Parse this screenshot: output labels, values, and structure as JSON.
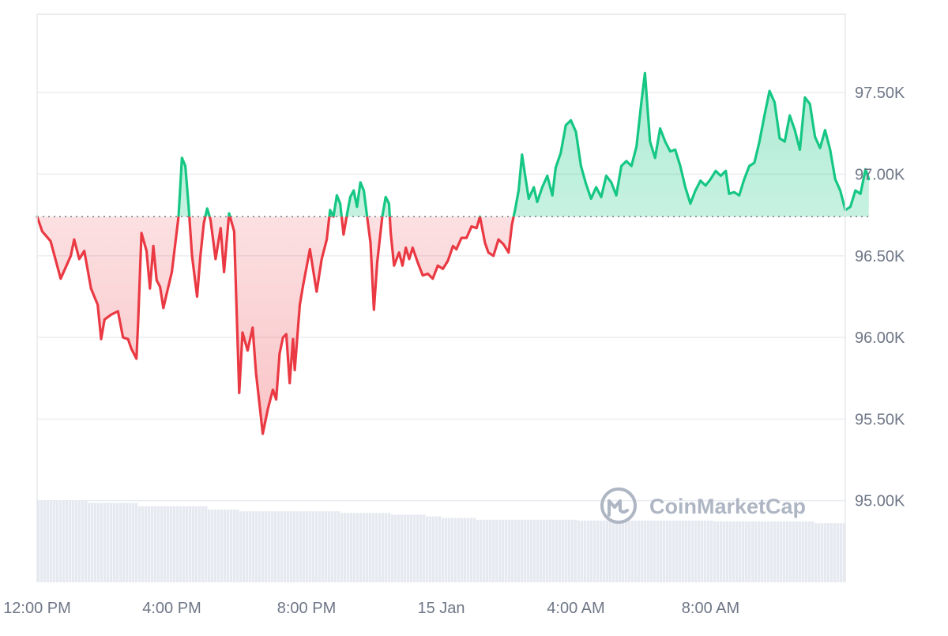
{
  "chart_data": {
    "type": "area",
    "baseline": 96740,
    "ylim": [
      94500,
      97980
    ],
    "y_ticks": [
      {
        "value": 95000,
        "label": "95.00K"
      },
      {
        "value": 95500,
        "label": "95.50K"
      },
      {
        "value": 96000,
        "label": "96.00K"
      },
      {
        "value": 96500,
        "label": "96.50K"
      },
      {
        "value": 97000,
        "label": "97.00K"
      },
      {
        "value": 97500,
        "label": "97.50K"
      }
    ],
    "x_ticks": [
      {
        "hours": 0,
        "label": "12:00 PM"
      },
      {
        "hours": 4,
        "label": "4:00 PM"
      },
      {
        "hours": 8,
        "label": "8:00 PM"
      },
      {
        "hours": 12,
        "label": "15 Jan"
      },
      {
        "hours": 16,
        "label": "4:00 AM"
      },
      {
        "hours": 20,
        "label": "8:00 AM"
      }
    ],
    "xlim_hours": [
      0,
      24
    ],
    "colors": {
      "up": "#16c784",
      "down": "#ea3943",
      "grid": "#e9ecf0",
      "volume": "#e6eaf0"
    },
    "watermark": "CoinMarketCap",
    "price_series": [
      [
        0.0,
        96740
      ],
      [
        0.15,
        96650
      ],
      [
        0.4,
        96590
      ],
      [
        0.7,
        96360
      ],
      [
        1.0,
        96500
      ],
      [
        1.1,
        96600
      ],
      [
        1.25,
        96480
      ],
      [
        1.4,
        96530
      ],
      [
        1.6,
        96300
      ],
      [
        1.8,
        96200
      ],
      [
        1.9,
        95990
      ],
      [
        2.0,
        96110
      ],
      [
        2.2,
        96140
      ],
      [
        2.4,
        96160
      ],
      [
        2.55,
        96000
      ],
      [
        2.7,
        95990
      ],
      [
        2.8,
        95930
      ],
      [
        2.95,
        95870
      ],
      [
        3.0,
        96100
      ],
      [
        3.1,
        96640
      ],
      [
        3.25,
        96530
      ],
      [
        3.35,
        96300
      ],
      [
        3.45,
        96560
      ],
      [
        3.55,
        96350
      ],
      [
        3.65,
        96310
      ],
      [
        3.75,
        96180
      ],
      [
        3.85,
        96270
      ],
      [
        4.0,
        96400
      ],
      [
        4.2,
        96740
      ],
      [
        4.3,
        97100
      ],
      [
        4.4,
        97050
      ],
      [
        4.5,
        96800
      ],
      [
        4.6,
        96500
      ],
      [
        4.75,
        96250
      ],
      [
        4.85,
        96500
      ],
      [
        4.95,
        96700
      ],
      [
        5.05,
        96790
      ],
      [
        5.15,
        96720
      ],
      [
        5.3,
        96480
      ],
      [
        5.45,
        96670
      ],
      [
        5.55,
        96400
      ],
      [
        5.7,
        96760
      ],
      [
        5.85,
        96650
      ],
      [
        6.0,
        95660
      ],
      [
        6.1,
        96030
      ],
      [
        6.25,
        95920
      ],
      [
        6.4,
        96060
      ],
      [
        6.5,
        95780
      ],
      [
        6.6,
        95600
      ],
      [
        6.7,
        95410
      ],
      [
        6.85,
        95560
      ],
      [
        7.0,
        95680
      ],
      [
        7.1,
        95620
      ],
      [
        7.2,
        95900
      ],
      [
        7.3,
        96000
      ],
      [
        7.4,
        96020
      ],
      [
        7.5,
        95720
      ],
      [
        7.6,
        95990
      ],
      [
        7.65,
        95800
      ],
      [
        7.8,
        96200
      ],
      [
        7.9,
        96320
      ],
      [
        8.1,
        96540
      ],
      [
        8.2,
        96410
      ],
      [
        8.3,
        96280
      ],
      [
        8.45,
        96480
      ],
      [
        8.6,
        96600
      ],
      [
        8.7,
        96780
      ],
      [
        8.8,
        96740
      ],
      [
        8.9,
        96870
      ],
      [
        9.0,
        96820
      ],
      [
        9.1,
        96630
      ],
      [
        9.2,
        96750
      ],
      [
        9.3,
        96860
      ],
      [
        9.4,
        96900
      ],
      [
        9.5,
        96800
      ],
      [
        9.6,
        96950
      ],
      [
        9.7,
        96900
      ],
      [
        9.8,
        96740
      ],
      [
        9.9,
        96580
      ],
      [
        10.0,
        96170
      ],
      [
        10.1,
        96460
      ],
      [
        10.25,
        96740
      ],
      [
        10.35,
        96860
      ],
      [
        10.45,
        96820
      ],
      [
        10.5,
        96640
      ],
      [
        10.6,
        96440
      ],
      [
        10.75,
        96520
      ],
      [
        10.85,
        96440
      ],
      [
        10.95,
        96550
      ],
      [
        11.05,
        96480
      ],
      [
        11.15,
        96550
      ],
      [
        11.3,
        96460
      ],
      [
        11.45,
        96380
      ],
      [
        11.6,
        96390
      ],
      [
        11.75,
        96360
      ],
      [
        11.9,
        96440
      ],
      [
        12.05,
        96420
      ],
      [
        12.2,
        96470
      ],
      [
        12.35,
        96560
      ],
      [
        12.45,
        96540
      ],
      [
        12.6,
        96610
      ],
      [
        12.75,
        96610
      ],
      [
        12.9,
        96680
      ],
      [
        13.05,
        96670
      ],
      [
        13.15,
        96740
      ],
      [
        13.3,
        96580
      ],
      [
        13.4,
        96520
      ],
      [
        13.55,
        96500
      ],
      [
        13.7,
        96600
      ],
      [
        13.85,
        96570
      ],
      [
        14.0,
        96520
      ],
      [
        14.1,
        96690
      ],
      [
        14.2,
        96790
      ],
      [
        14.3,
        96900
      ],
      [
        14.4,
        97120
      ],
      [
        14.5,
        96980
      ],
      [
        14.6,
        96850
      ],
      [
        14.75,
        96920
      ],
      [
        14.85,
        96830
      ],
      [
        15.0,
        96920
      ],
      [
        15.15,
        96990
      ],
      [
        15.3,
        96870
      ],
      [
        15.4,
        97040
      ],
      [
        15.55,
        97130
      ],
      [
        15.7,
        97300
      ],
      [
        15.85,
        97330
      ],
      [
        16.0,
        97260
      ],
      [
        16.15,
        97050
      ],
      [
        16.3,
        96940
      ],
      [
        16.45,
        96850
      ],
      [
        16.6,
        96920
      ],
      [
        16.75,
        96860
      ],
      [
        16.9,
        96990
      ],
      [
        17.05,
        96950
      ],
      [
        17.2,
        96870
      ],
      [
        17.35,
        97050
      ],
      [
        17.5,
        97080
      ],
      [
        17.65,
        97050
      ],
      [
        17.8,
        97170
      ],
      [
        17.95,
        97450
      ],
      [
        18.05,
        97620
      ],
      [
        18.2,
        97200
      ],
      [
        18.35,
        97100
      ],
      [
        18.5,
        97280
      ],
      [
        18.65,
        97200
      ],
      [
        18.8,
        97140
      ],
      [
        18.95,
        97150
      ],
      [
        19.1,
        97050
      ],
      [
        19.25,
        96920
      ],
      [
        19.4,
        96820
      ],
      [
        19.55,
        96900
      ],
      [
        19.7,
        96960
      ],
      [
        19.85,
        96930
      ],
      [
        20.0,
        96970
      ],
      [
        20.15,
        97020
      ],
      [
        20.3,
        96990
      ],
      [
        20.45,
        97020
      ],
      [
        20.55,
        96880
      ],
      [
        20.7,
        96890
      ],
      [
        20.85,
        96870
      ],
      [
        21.0,
        96970
      ],
      [
        21.15,
        97050
      ],
      [
        21.3,
        97070
      ],
      [
        21.45,
        97200
      ],
      [
        21.6,
        97360
      ],
      [
        21.75,
        97510
      ],
      [
        21.9,
        97440
      ],
      [
        22.05,
        97220
      ],
      [
        22.2,
        97200
      ],
      [
        22.35,
        97360
      ],
      [
        22.5,
        97270
      ],
      [
        22.65,
        97150
      ],
      [
        22.8,
        97470
      ],
      [
        22.95,
        97430
      ],
      [
        23.1,
        97230
      ],
      [
        23.25,
        97160
      ],
      [
        23.4,
        97270
      ],
      [
        23.55,
        97150
      ],
      [
        23.7,
        96970
      ],
      [
        23.85,
        96900
      ],
      [
        24.0,
        96780
      ],
      [
        24.15,
        96800
      ],
      [
        24.3,
        96900
      ],
      [
        24.45,
        96880
      ],
      [
        24.6,
        97030
      ],
      [
        24.7,
        96970
      ]
    ],
    "volume_series": [
      [
        0,
        0.96
      ],
      [
        1.5,
        0.94
      ],
      [
        3,
        0.9
      ],
      [
        4.5,
        0.9
      ],
      [
        5,
        0.86
      ],
      [
        6,
        0.84
      ],
      [
        8,
        0.84
      ],
      [
        9,
        0.82
      ],
      [
        10.5,
        0.8
      ],
      [
        11.5,
        0.78
      ],
      [
        12,
        0.76
      ],
      [
        13,
        0.74
      ],
      [
        16,
        0.73
      ],
      [
        18,
        0.73
      ],
      [
        20,
        0.72
      ],
      [
        22,
        0.72
      ],
      [
        23,
        0.7
      ],
      [
        24.7,
        0.68
      ]
    ]
  }
}
